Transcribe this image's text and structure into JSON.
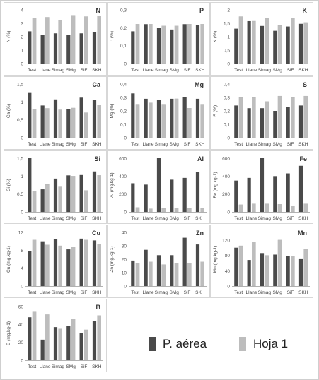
{
  "colors": {
    "p_aerea": "#4a4a4a",
    "hoja1": "#bdbdbd"
  },
  "legend": {
    "series1": "P. aérea",
    "series2": "Hoja 1"
  },
  "chart_data": [
    {
      "type": "bar",
      "title": "N",
      "ylabel": "N (%)",
      "ylim": [
        0,
        4
      ],
      "yticks": [
        0,
        1,
        2,
        3,
        4
      ],
      "categories": [
        "Test",
        "Llane",
        "Simag",
        "SMg",
        "SiF",
        "SKH"
      ],
      "series": [
        {
          "name": "P. aérea",
          "values": [
            2.4,
            2.15,
            2.25,
            2.15,
            2.25,
            2.35
          ]
        },
        {
          "name": "Hoja 1",
          "values": [
            3.4,
            3.45,
            3.2,
            3.6,
            3.5,
            3.55
          ]
        }
      ]
    },
    {
      "type": "bar",
      "title": "P",
      "ylabel": "P (%)",
      "ylim": [
        0,
        0.3
      ],
      "yticks": [
        "0",
        "0,1",
        "0,2",
        "0,3"
      ],
      "categories": [
        "Test",
        "Llane",
        "Simag",
        "SMg",
        "SiF",
        "SKH"
      ],
      "series": [
        {
          "name": "P. aérea",
          "values": [
            0.18,
            0.22,
            0.2,
            0.19,
            0.22,
            0.215
          ]
        },
        {
          "name": "Hoja 1",
          "values": [
            0.22,
            0.22,
            0.21,
            0.21,
            0.22,
            0.22
          ]
        }
      ]
    },
    {
      "type": "bar",
      "title": "K",
      "ylabel": "K (%)",
      "ylim": [
        0,
        2
      ],
      "yticks": [
        "0",
        "0,5",
        "1",
        "1,5",
        "2"
      ],
      "categories": [
        "Test",
        "Llane",
        "Simag",
        "SMg",
        "SiF",
        "SKH"
      ],
      "series": [
        {
          "name": "P. aérea",
          "values": [
            1.3,
            1.58,
            1.4,
            1.22,
            1.38,
            1.48
          ]
        },
        {
          "name": "Hoja 1",
          "values": [
            1.75,
            1.58,
            1.68,
            1.42,
            1.7,
            1.53
          ]
        }
      ]
    },
    {
      "type": "bar",
      "title": "Ca",
      "ylabel": "Ca (%)",
      "ylim": [
        0,
        1.5
      ],
      "yticks": [
        "0",
        "0,5",
        "1",
        "1,5"
      ],
      "categories": [
        "Test",
        "Llane",
        "Simag",
        "SMg",
        "SiF",
        "SKH"
      ],
      "series": [
        {
          "name": "P. aérea",
          "values": [
            1.27,
            0.9,
            1.07,
            0.8,
            1.12,
            1.06
          ]
        },
        {
          "name": "Hoja 1",
          "values": [
            0.8,
            0.82,
            0.78,
            0.83,
            0.7,
            0.92
          ]
        }
      ]
    },
    {
      "type": "bar",
      "title": "Mg",
      "ylabel": "Mg (%)",
      "ylim": [
        0,
        0.4
      ],
      "yticks": [
        "0",
        "0,1",
        "0,2",
        "0,3",
        "0,4"
      ],
      "categories": [
        "Test",
        "Llane",
        "Simag",
        "SMg",
        "SiF",
        "SKH"
      ],
      "series": [
        {
          "name": "P. aérea",
          "values": [
            0.33,
            0.29,
            0.28,
            0.29,
            0.3,
            0.29
          ]
        },
        {
          "name": "Hoja 1",
          "values": [
            0.25,
            0.26,
            0.25,
            0.29,
            0.22,
            0.25
          ]
        }
      ]
    },
    {
      "type": "bar",
      "title": "S",
      "ylabel": "S (%)",
      "ylim": [
        0,
        0.4
      ],
      "yticks": [
        "0",
        "0,1",
        "0,2",
        "0,3",
        "0,4"
      ],
      "categories": [
        "Test",
        "Llane",
        "Simag",
        "SMg",
        "SiF",
        "SKH"
      ],
      "series": [
        {
          "name": "P. aérea",
          "values": [
            0.24,
            0.22,
            0.22,
            0.2,
            0.23,
            0.24
          ]
        },
        {
          "name": "Hoja 1",
          "values": [
            0.3,
            0.3,
            0.27,
            0.31,
            0.3,
            0.31
          ]
        }
      ]
    },
    {
      "type": "bar",
      "title": "Si",
      "ylabel": "Si (%)",
      "ylim": [
        0,
        1.5
      ],
      "yticks": [
        "0",
        "0,5",
        "1",
        "1,5"
      ],
      "categories": [
        "Test",
        "Llane",
        "Simag",
        "SMg",
        "SiF",
        "SKH"
      ],
      "series": [
        {
          "name": "P. aérea",
          "values": [
            1.5,
            0.63,
            0.93,
            1.02,
            1.03,
            1.13
          ]
        },
        {
          "name": "Hoja 1",
          "values": [
            0.58,
            0.77,
            0.7,
            1.0,
            0.6,
            1.02
          ]
        }
      ]
    },
    {
      "type": "bar",
      "title": "Al",
      "ylabel": "Al (mg.kg-1)",
      "ylim": [
        0,
        600
      ],
      "yticks": [
        "0",
        "200",
        "400",
        "600"
      ],
      "categories": [
        "Test",
        "Llane",
        "Simag",
        "SMg",
        "SiF",
        "SKH"
      ],
      "series": [
        {
          "name": "P. aérea",
          "values": [
            320,
            305,
            640,
            360,
            380,
            450
          ]
        },
        {
          "name": "Hoja 1",
          "values": [
            50,
            35,
            40,
            40,
            40,
            40
          ]
        }
      ]
    },
    {
      "type": "bar",
      "title": "Fe",
      "ylabel": "Fe (mg.kg-1)",
      "ylim": [
        0,
        600
      ],
      "yticks": [
        "0",
        "200",
        "400",
        "600"
      ],
      "categories": [
        "Test",
        "Llane",
        "Simag",
        "SMg",
        "SiF",
        "SKH"
      ],
      "series": [
        {
          "name": "P. aérea",
          "values": [
            350,
            380,
            640,
            400,
            430,
            515
          ]
        },
        {
          "name": "Hoja 1",
          "values": [
            80,
            90,
            90,
            85,
            70,
            90
          ]
        }
      ]
    },
    {
      "type": "bar",
      "title": "Cu",
      "ylabel": "Cu (mg.kg-1)",
      "ylim": [
        0,
        12
      ],
      "yticks": [
        "0",
        "4",
        "8",
        "12"
      ],
      "categories": [
        "Test",
        "Llane",
        "Simag",
        "SMg",
        "SiF",
        "SKH"
      ],
      "series": [
        {
          "name": "P. aérea",
          "values": [
            7.8,
            10,
            10.5,
            8.2,
            10.6,
            10.2
          ]
        },
        {
          "name": "Hoja 1",
          "values": [
            10.3,
            9.2,
            9,
            8.8,
            10.3,
            9.4
          ]
        }
      ]
    },
    {
      "type": "bar",
      "title": "Zn",
      "ylabel": "Zn (mg.kg-1)",
      "ylim": [
        0,
        40
      ],
      "yticks": [
        "0",
        "10",
        "20",
        "30",
        "40"
      ],
      "categories": [
        "Test",
        "Llane",
        "Simag",
        "SMg",
        "SiF",
        "SKH"
      ],
      "series": [
        {
          "name": "P. aérea",
          "values": [
            19,
            27,
            23,
            23,
            36,
            31
          ]
        },
        {
          "name": "Hoja 1",
          "values": [
            17,
            18,
            16,
            17,
            17,
            18
          ]
        }
      ]
    },
    {
      "type": "bar",
      "title": "Mn",
      "ylabel": "Mn (mg.kg-1)",
      "ylim": [
        0,
        140
      ],
      "yticks": [
        "0",
        "40",
        "80",
        "120"
      ],
      "categories": [
        "Test",
        "Llane",
        "Simag",
        "SMg",
        "SiF",
        "SKH"
      ],
      "series": [
        {
          "name": "P. aérea",
          "values": [
            100,
            68,
            86,
            82,
            78,
            72
          ]
        },
        {
          "name": "Hoja 1",
          "values": [
            105,
            115,
            80,
            120,
            78,
            96
          ]
        }
      ]
    },
    {
      "type": "bar",
      "title": "B",
      "ylabel": "B (mg.kg-1)",
      "ylim": [
        0,
        60
      ],
      "yticks": [
        "0",
        "20",
        "40",
        "60"
      ],
      "categories": [
        "Test",
        "Llane",
        "Simag",
        "SMg",
        "SiF",
        "SKH"
      ],
      "series": [
        {
          "name": "P. aérea",
          "values": [
            48,
            23,
            37,
            38,
            30,
            44
          ]
        },
        {
          "name": "Hoja 1",
          "values": [
            54,
            51,
            35,
            46,
            34,
            50
          ]
        }
      ]
    }
  ]
}
